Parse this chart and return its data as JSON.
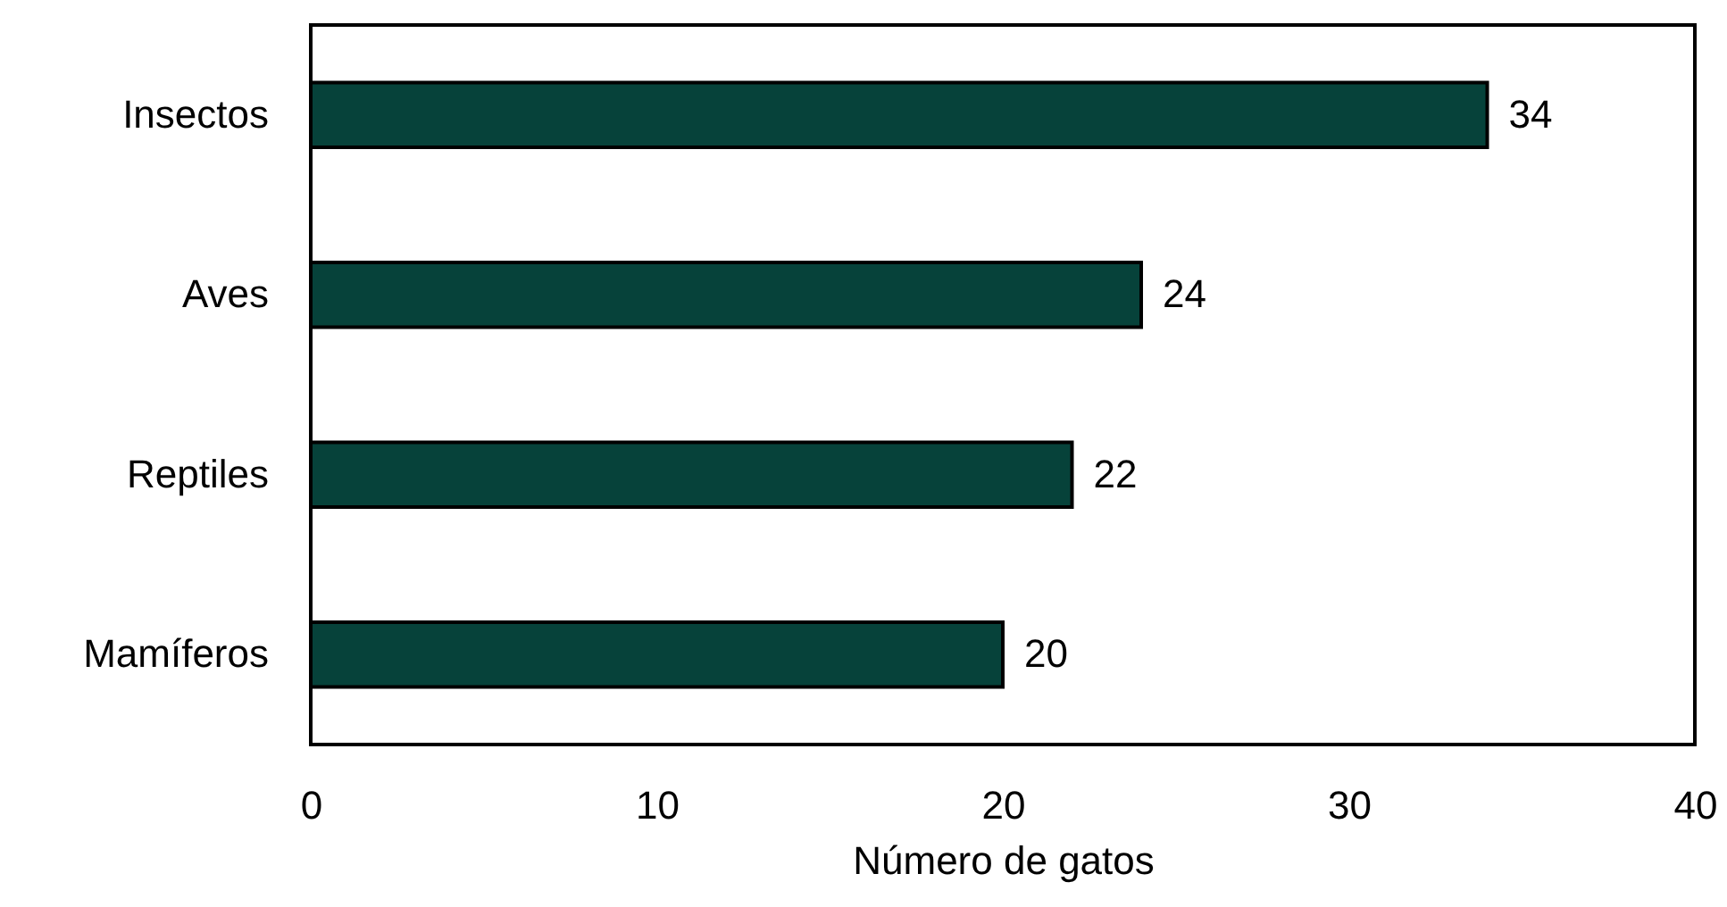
{
  "chart_data": {
    "type": "bar",
    "orientation": "horizontal",
    "categories": [
      "Insectos",
      "Aves",
      "Reptiles",
      "Mamíferos"
    ],
    "values": [
      34,
      24,
      22,
      20
    ],
    "color": "#06423a",
    "xlabel": "Número de gatos",
    "xlim": [
      0,
      40
    ],
    "xticks": [
      0,
      10,
      20,
      30,
      40
    ],
    "data_labels": true
  }
}
